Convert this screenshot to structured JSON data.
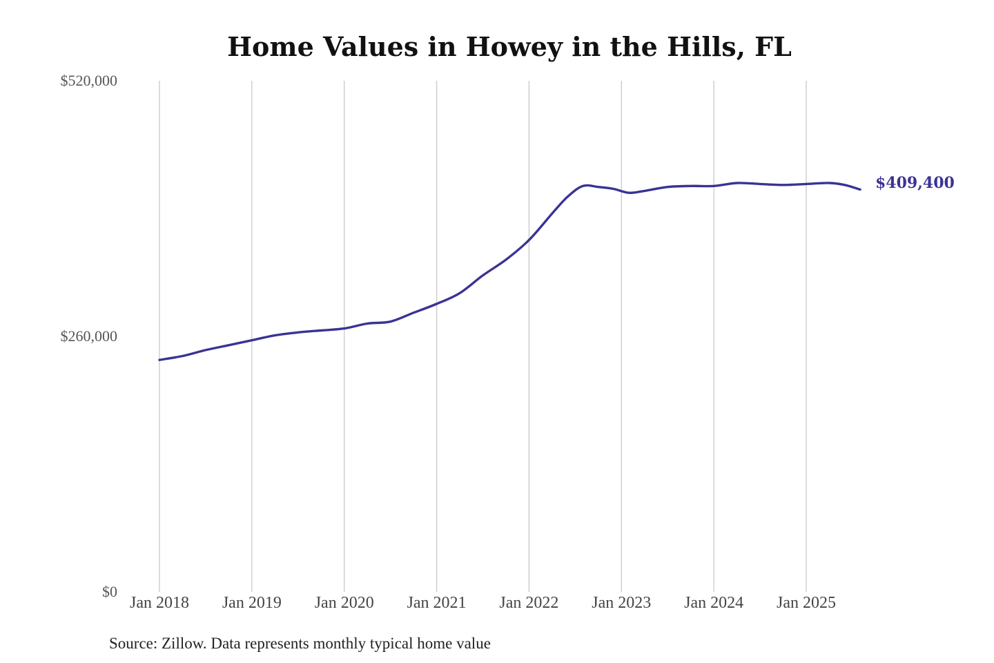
{
  "colors": {
    "line": "#3a3394",
    "grid": "#c8c8c8",
    "background": "#ffffff"
  },
  "source_note": "Source: Zillow. Data represents monthly typical home value",
  "chart_data": {
    "type": "line",
    "title": "Home Values in Howey in the Hills, FL",
    "xlabel": "",
    "ylabel": "",
    "xlim": [
      "2018-01",
      "2025-08"
    ],
    "ylim": [
      0,
      520000
    ],
    "y_ticks": [
      {
        "value": 0,
        "label": "$0"
      },
      {
        "value": 260000,
        "label": "$260,000"
      },
      {
        "value": 520000,
        "label": "$520,000"
      }
    ],
    "x_ticks": [
      {
        "date": "2018-01",
        "label": "Jan 2018"
      },
      {
        "date": "2019-01",
        "label": "Jan 2019"
      },
      {
        "date": "2020-01",
        "label": "Jan 2020"
      },
      {
        "date": "2021-01",
        "label": "Jan 2021"
      },
      {
        "date": "2022-01",
        "label": "Jan 2022"
      },
      {
        "date": "2023-01",
        "label": "Jan 2023"
      },
      {
        "date": "2024-01",
        "label": "Jan 2024"
      },
      {
        "date": "2025-01",
        "label": "Jan 2025"
      }
    ],
    "grid": {
      "vertical": true,
      "horizontal": false
    },
    "legend": "none",
    "end_label": "$409,400",
    "series": [
      {
        "color": "#3a3394",
        "x": [
          "2018-01",
          "2018-04",
          "2018-07",
          "2018-10",
          "2019-01",
          "2019-04",
          "2019-07",
          "2019-10",
          "2020-01",
          "2020-04",
          "2020-07",
          "2020-10",
          "2021-01",
          "2021-04",
          "2021-07",
          "2021-10",
          "2022-01",
          "2022-04",
          "2022-06",
          "2022-08",
          "2022-10",
          "2022-12",
          "2023-02",
          "2023-04",
          "2023-07",
          "2023-10",
          "2024-01",
          "2024-04",
          "2024-07",
          "2024-10",
          "2025-01",
          "2025-04",
          "2025-06",
          "2025-08"
        ],
        "values": [
          236000,
          240000,
          246000,
          251000,
          256000,
          261000,
          264000,
          266000,
          268000,
          273000,
          275000,
          284000,
          293000,
          304000,
          322000,
          338000,
          358000,
          385000,
          402000,
          413000,
          412000,
          410000,
          406000,
          408000,
          412000,
          413000,
          413000,
          416000,
          415000,
          414000,
          415000,
          416000,
          414000,
          409400
        ]
      }
    ]
  }
}
